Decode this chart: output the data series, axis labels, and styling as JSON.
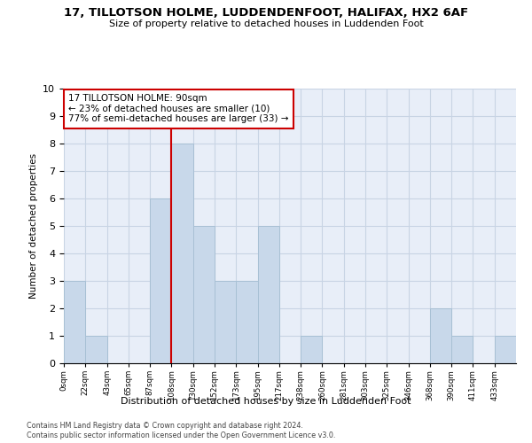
{
  "title1": "17, TILLOTSON HOLME, LUDDENDENFOOT, HALIFAX, HX2 6AF",
  "title2": "Size of property relative to detached houses in Luddenden Foot",
  "xlabel": "Distribution of detached houses by size in Luddenden Foot",
  "ylabel": "Number of detached properties",
  "bin_labels": [
    "0sqm",
    "22sqm",
    "43sqm",
    "65sqm",
    "87sqm",
    "108sqm",
    "130sqm",
    "152sqm",
    "173sqm",
    "195sqm",
    "217sqm",
    "238sqm",
    "260sqm",
    "281sqm",
    "303sqm",
    "325sqm",
    "346sqm",
    "368sqm",
    "390sqm",
    "411sqm",
    "433sqm"
  ],
  "bar_values": [
    3,
    1,
    0,
    0,
    6,
    8,
    5,
    3,
    3,
    5,
    0,
    1,
    0,
    0,
    0,
    0,
    0,
    2,
    1,
    0,
    1
  ],
  "bar_color": "#c8d8ea",
  "bar_edge_color": "#a8c0d4",
  "grid_color": "#c8d4e4",
  "bg_color": "#e8eef8",
  "red_line_bin": 4,
  "annotation_box_text": "17 TILLOTSON HOLME: 90sqm\n← 23% of detached houses are smaller (10)\n77% of semi-detached houses are larger (33) →",
  "annotation_box_color": "#cc0000",
  "ylim": [
    0,
    10
  ],
  "yticks": [
    0,
    1,
    2,
    3,
    4,
    5,
    6,
    7,
    8,
    9,
    10
  ],
  "footnote1": "Contains HM Land Registry data © Crown copyright and database right 2024.",
  "footnote2": "Contains public sector information licensed under the Open Government Licence v3.0."
}
